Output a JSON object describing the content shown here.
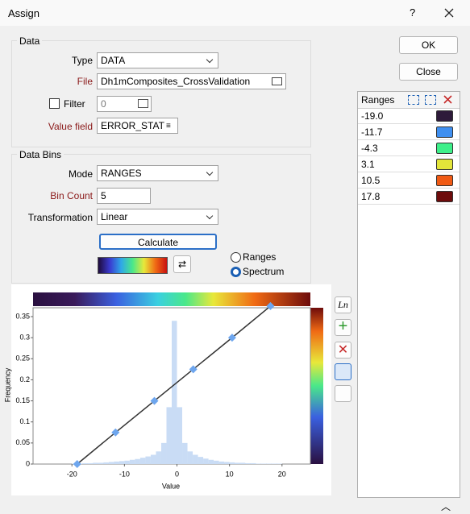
{
  "window": {
    "title": "Assign",
    "help": "?"
  },
  "data_group": {
    "title": "Data",
    "type_label": "Type",
    "type_value": "DATA",
    "file_label": "File",
    "file_value": "Dh1mComposites_CrossValidation",
    "filter_label": "Filter",
    "filter_value": "0",
    "value_field_label": "Value field",
    "value_field_value": "ERROR_STAT"
  },
  "bins_group": {
    "title": "Data Bins",
    "mode_label": "Mode",
    "mode_value": "RANGES",
    "bin_count_label": "Bin Count",
    "bin_count_value": "5",
    "transformation_label": "Transformation",
    "transformation_value": "Linear",
    "calculate": "Calculate",
    "radio_ranges": "Ranges",
    "radio_spectrum": "Spectrum"
  },
  "buttons": {
    "ok": "OK",
    "close": "Close"
  },
  "ranges": {
    "header": "Ranges",
    "rows": [
      {
        "value": "-19.0",
        "color": "#2e1a3a"
      },
      {
        "value": "-11.7",
        "color": "#3f8ff0"
      },
      {
        "value": "-4.3",
        "color": "#3ef08a"
      },
      {
        "value": "3.1",
        "color": "#e3e53a"
      },
      {
        "value": "10.5",
        "color": "#f05a14"
      },
      {
        "value": "17.8",
        "color": "#6d0b0b"
      }
    ]
  },
  "tools": {
    "ln": "Ln"
  },
  "chart_data": {
    "type": "histogram",
    "x_label": "Value",
    "y_label": "Frequency",
    "bins": [
      -20,
      -19,
      -18,
      -17,
      -16,
      -15,
      -14,
      -13,
      -12,
      -11,
      -10,
      -9,
      -8,
      -7,
      -6,
      -5,
      -4,
      -3,
      -2,
      -1,
      0,
      1,
      2,
      3,
      4,
      5,
      6,
      7,
      8,
      9,
      10,
      11,
      12,
      13,
      14,
      15,
      16,
      17,
      18,
      19,
      20
    ],
    "values": [
      0.001,
      0.001,
      0.002,
      0.002,
      0.003,
      0.003,
      0.004,
      0.005,
      0.006,
      0.007,
      0.008,
      0.01,
      0.012,
      0.015,
      0.018,
      0.022,
      0.03,
      0.05,
      0.135,
      0.34,
      0.135,
      0.05,
      0.03,
      0.022,
      0.017,
      0.013,
      0.01,
      0.008,
      0.006,
      0.005,
      0.004,
      0.003,
      0.003,
      0.002,
      0.002,
      0.001,
      0.001,
      0.001,
      0.001,
      0.001
    ],
    "color": "#c9dcf5",
    "line": {
      "color": "#333333",
      "marker_color": "#6ea6ee",
      "x": [
        -19,
        -11.7,
        -4.3,
        3.1,
        10.5,
        17.8
      ],
      "y": [
        0,
        0.075,
        0.15,
        0.225,
        0.3,
        0.375
      ]
    },
    "xlim": [
      -27.4,
      25.4
    ],
    "ylim": [
      0,
      0.371
    ],
    "xticks": [
      -20,
      -10,
      0,
      10,
      20
    ],
    "yticks": [
      0,
      0.05,
      0.1,
      0.15,
      0.2,
      0.25,
      0.3,
      0.35
    ]
  }
}
